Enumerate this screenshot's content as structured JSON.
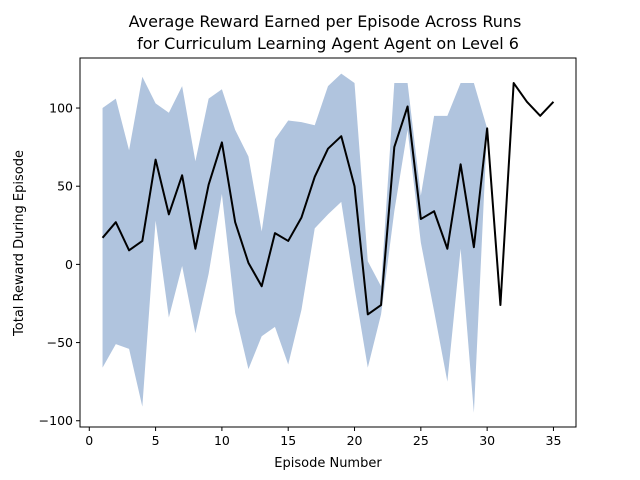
{
  "chart_data": {
    "type": "line",
    "title_line1": "Average Reward Earned per Episode Across Runs",
    "title_line2": "for Curriculum Learning Agent Agent on Level 6",
    "xlabel": "Episode Number",
    "ylabel": "Total Reward During Episode",
    "xlim": [
      -0.7,
      36.7
    ],
    "ylim": [
      -104,
      132
    ],
    "xticks": [
      0,
      5,
      10,
      15,
      20,
      25,
      30,
      35
    ],
    "yticks": [
      -100,
      -50,
      0,
      50,
      100
    ],
    "grid": false,
    "colors": {
      "line": "#000000",
      "band": "#b0c4de"
    },
    "series": [
      {
        "x": [
          1,
          2,
          3,
          4,
          5,
          6,
          7,
          8,
          9,
          10,
          11,
          12,
          13,
          14,
          15,
          16,
          17,
          18,
          19,
          20,
          21,
          22,
          23,
          24,
          25,
          26,
          27,
          28,
          29,
          30,
          31,
          32,
          33,
          34,
          35
        ],
        "values": [
          17,
          27,
          9,
          15,
          67,
          32,
          57,
          10,
          51,
          78,
          27,
          1,
          -14,
          20,
          15,
          30,
          56,
          74,
          82,
          50,
          -32,
          -26,
          75,
          101,
          29,
          34,
          10,
          64,
          11,
          87,
          -26,
          116,
          104,
          95,
          104
        ]
      }
    ],
    "band": {
      "x": [
        1,
        2,
        3,
        4,
        5,
        6,
        7,
        8,
        9,
        10,
        11,
        12,
        13,
        14,
        15,
        16,
        17,
        18,
        19,
        20,
        21,
        22,
        23,
        24,
        25,
        26,
        27,
        28,
        29,
        30
      ],
      "upper": [
        100,
        106,
        73,
        120,
        103,
        97,
        114,
        66,
        106,
        112,
        86,
        69,
        21,
        80,
        92,
        91,
        89,
        114,
        122,
        116,
        2,
        -14,
        116,
        116,
        44,
        95,
        95,
        116,
        116,
        87
      ],
      "lower": [
        -66,
        -51,
        -54,
        -91,
        28,
        -34,
        -1,
        -44,
        -6,
        45,
        -31,
        -67,
        -46,
        -40,
        -64,
        -29,
        23,
        32,
        40,
        -15,
        -66,
        -32,
        34,
        86,
        14,
        -30,
        -75,
        10,
        -95,
        87
      ]
    }
  }
}
